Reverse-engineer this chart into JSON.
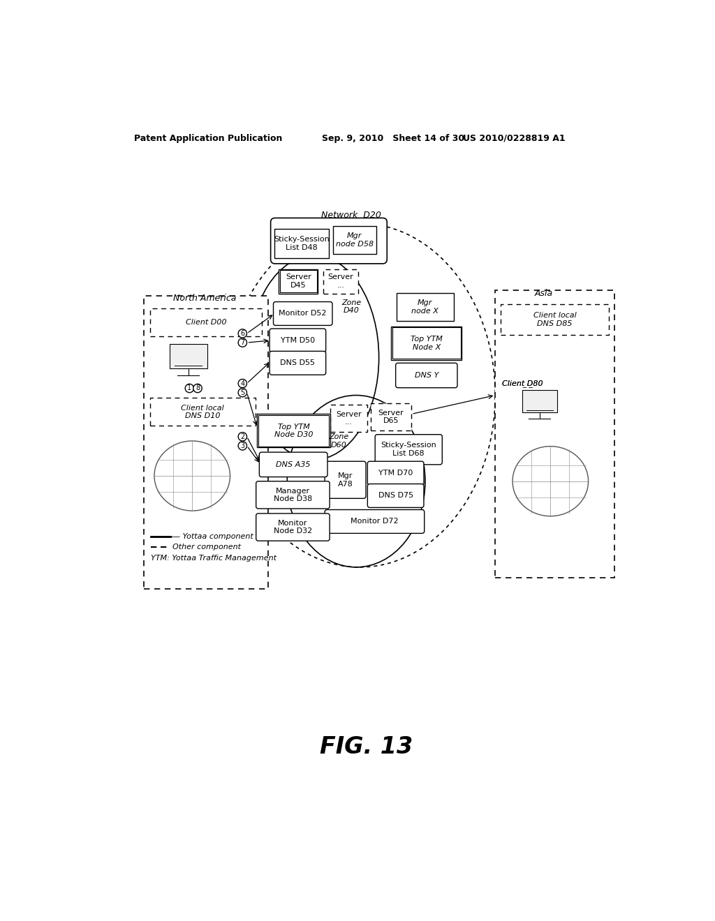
{
  "title_left": "Patent Application Publication",
  "title_mid": "Sep. 9, 2010   Sheet 14 of 30",
  "title_right": "US 2010/0228819 A1",
  "fig_label": "FIG. 13",
  "background": "#ffffff"
}
